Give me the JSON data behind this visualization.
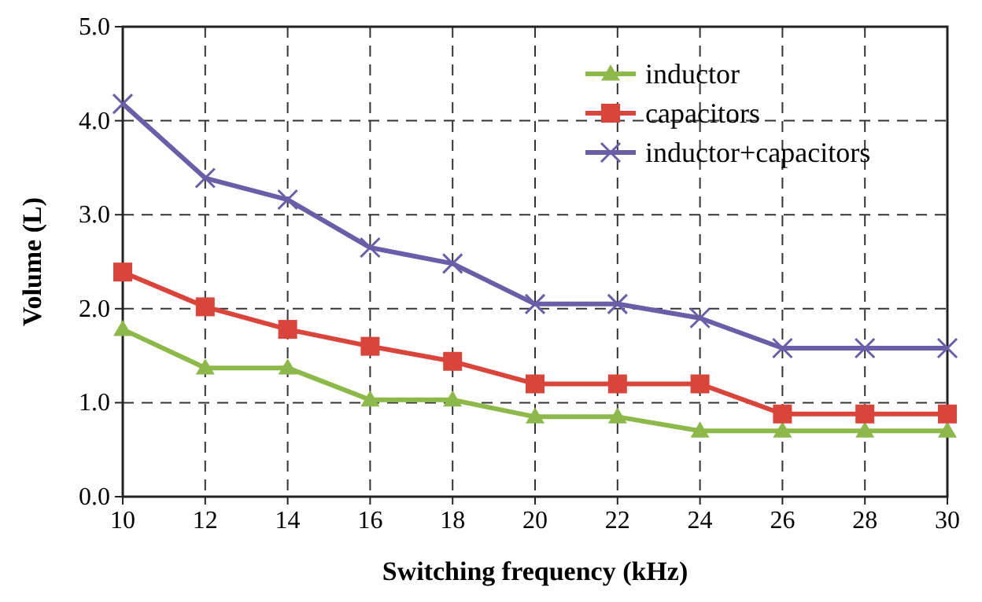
{
  "chart_data": {
    "type": "line",
    "xlabel": "Switching frequency (kHz)",
    "ylabel": "Volume (L)",
    "x": [
      10,
      12,
      14,
      16,
      18,
      20,
      22,
      24,
      26,
      28,
      30
    ],
    "xlim": [
      10,
      30
    ],
    "xticks": [
      10,
      12,
      14,
      16,
      18,
      20,
      22,
      24,
      26,
      28,
      30
    ],
    "ylim": [
      0,
      5
    ],
    "yticks": [
      {
        "value": 0,
        "label": "0.0"
      },
      {
        "value": 1,
        "label": "1.0"
      },
      {
        "value": 2,
        "label": "2.0"
      },
      {
        "value": 3,
        "label": "3.0"
      },
      {
        "value": 4,
        "label": "4.0"
      },
      {
        "value": 5,
        "label": "5.0"
      }
    ],
    "grid": true,
    "legend": "top right",
    "line_style": "solid",
    "series": [
      {
        "name": "inductor",
        "color": "#8db84a",
        "marker": "triangle",
        "values": [
          1.78,
          1.37,
          1.37,
          1.03,
          1.03,
          0.85,
          0.85,
          0.7,
          0.7,
          0.7,
          0.7
        ]
      },
      {
        "name": "capacitors",
        "color": "#d9453a",
        "marker": "square",
        "values": [
          2.39,
          2.02,
          1.78,
          1.6,
          1.44,
          1.2,
          1.2,
          1.2,
          0.88,
          0.88,
          0.88
        ]
      },
      {
        "name": "inductor+capacitors",
        "color": "#6a5ea8",
        "marker": "cross",
        "values": [
          4.18,
          3.39,
          3.16,
          2.65,
          2.48,
          2.05,
          2.05,
          1.9,
          1.58,
          1.58,
          1.58
        ]
      }
    ]
  }
}
